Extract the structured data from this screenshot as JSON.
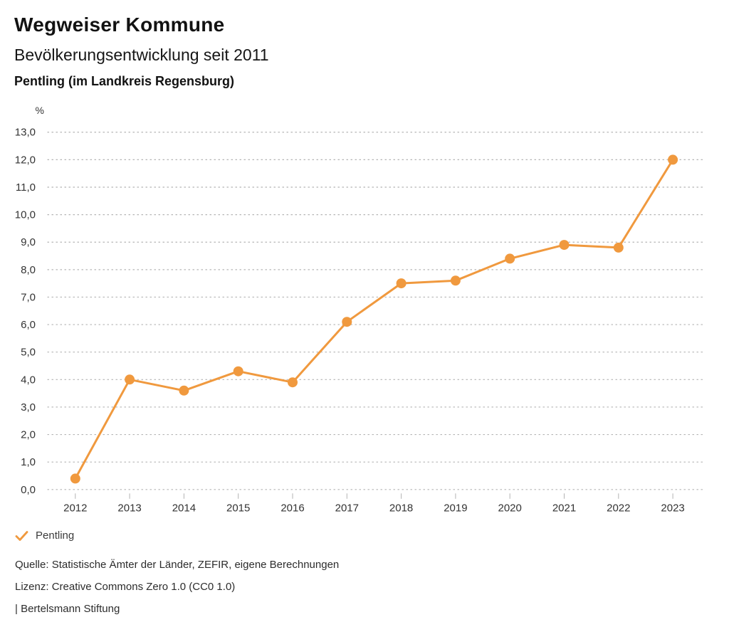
{
  "header": {
    "title": "Wegweiser Kommune",
    "subtitle": "Bevölkerungsentwicklung seit 2011",
    "region": "Pentling (im Landkreis Regensburg)"
  },
  "chart_data": {
    "type": "line",
    "title": "Bevölkerungsentwicklung seit 2011",
    "subtitle": "Pentling (im Landkreis Regensburg)",
    "unit_label": "%",
    "categories": [
      "2012",
      "2013",
      "2014",
      "2015",
      "2016",
      "2017",
      "2018",
      "2019",
      "2020",
      "2021",
      "2022",
      "2023"
    ],
    "series": [
      {
        "name": "Pentling",
        "color": "#F0993E",
        "values": [
          0.4,
          4.0,
          3.6,
          4.3,
          3.9,
          6.1,
          7.5,
          7.6,
          8.4,
          8.9,
          8.8,
          12.0
        ]
      }
    ],
    "ylim": [
      0,
      13
    ],
    "y_ticks": [
      0,
      1,
      2,
      3,
      4,
      5,
      6,
      7,
      8,
      9,
      10,
      11,
      12,
      13
    ],
    "y_tick_labels": [
      "0,0",
      "1,0",
      "2,0",
      "3,0",
      "4,0",
      "5,0",
      "6,0",
      "7,0",
      "8,0",
      "9,0",
      "10,0",
      "11,0",
      "12,0",
      "13,0"
    ],
    "grid": "horizontal-dotted",
    "grid_color": "#b5b5b5",
    "axis_text_color": "#333333",
    "legend_position": "bottom-left"
  },
  "legend": {
    "icon": "check-icon",
    "label": "Pentling",
    "color": "#F0993E"
  },
  "footer": {
    "source": "Quelle: Statistische Ämter der Länder, ZEFIR, eigene Berechnungen",
    "license": "Lizenz: Creative Commons Zero 1.0 (CC0 1.0)",
    "attribution": "| Bertelsmann Stiftung"
  }
}
